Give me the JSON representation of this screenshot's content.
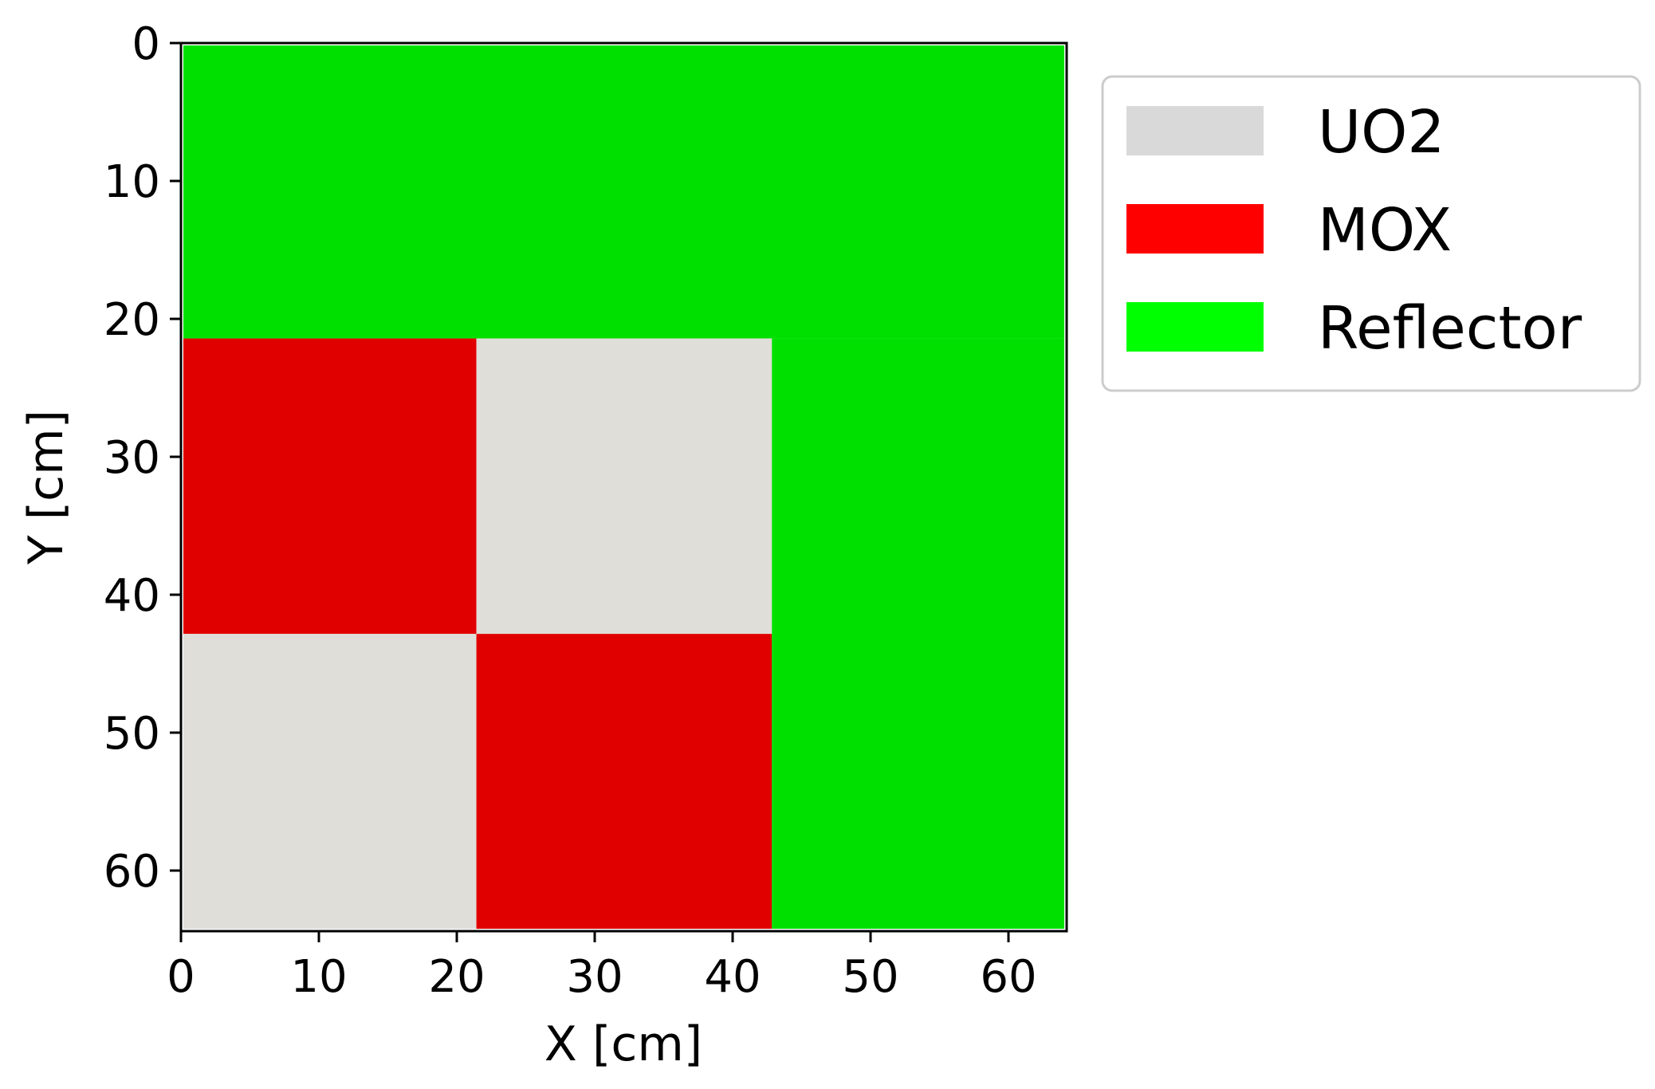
{
  "chart_data": {
    "type": "heatmap",
    "title": "",
    "xlabel": "X [cm]",
    "ylabel": "Y [cm]",
    "xlim": [
      0,
      64.26
    ],
    "ylim": [
      64.26,
      0
    ],
    "y_axis_inverted": true,
    "xticks": [
      0,
      10,
      20,
      30,
      40,
      50,
      60
    ],
    "yticks": [
      0,
      10,
      20,
      30,
      40,
      50,
      60
    ],
    "grid": false,
    "legend_position": "outside-right",
    "legend": [
      {
        "label": "UO2",
        "color": "#d9d9d9"
      },
      {
        "label": "MOX",
        "color": "#ff0000"
      },
      {
        "label": "Reflector",
        "color": "#00ff00"
      }
    ],
    "regions": [
      {
        "material": "Reflector",
        "x": [
          0,
          64.26
        ],
        "y": [
          0,
          21.42
        ],
        "color": "#00e000"
      },
      {
        "material": "Reflector",
        "x": [
          42.84,
          64.26
        ],
        "y": [
          21.42,
          64.26
        ],
        "color": "#00e000"
      },
      {
        "material": "MOX",
        "x": [
          0,
          21.42
        ],
        "y": [
          21.42,
          42.84
        ],
        "color": "#e00000"
      },
      {
        "material": "UO2",
        "x": [
          21.42,
          42.84
        ],
        "y": [
          21.42,
          42.84
        ],
        "color": "#e0ded8"
      },
      {
        "material": "UO2",
        "x": [
          0,
          21.42
        ],
        "y": [
          42.84,
          64.26
        ],
        "color": "#e0ded8"
      },
      {
        "material": "MOX",
        "x": [
          21.42,
          42.84
        ],
        "y": [
          42.84,
          64.26
        ],
        "color": "#e00000"
      }
    ]
  }
}
